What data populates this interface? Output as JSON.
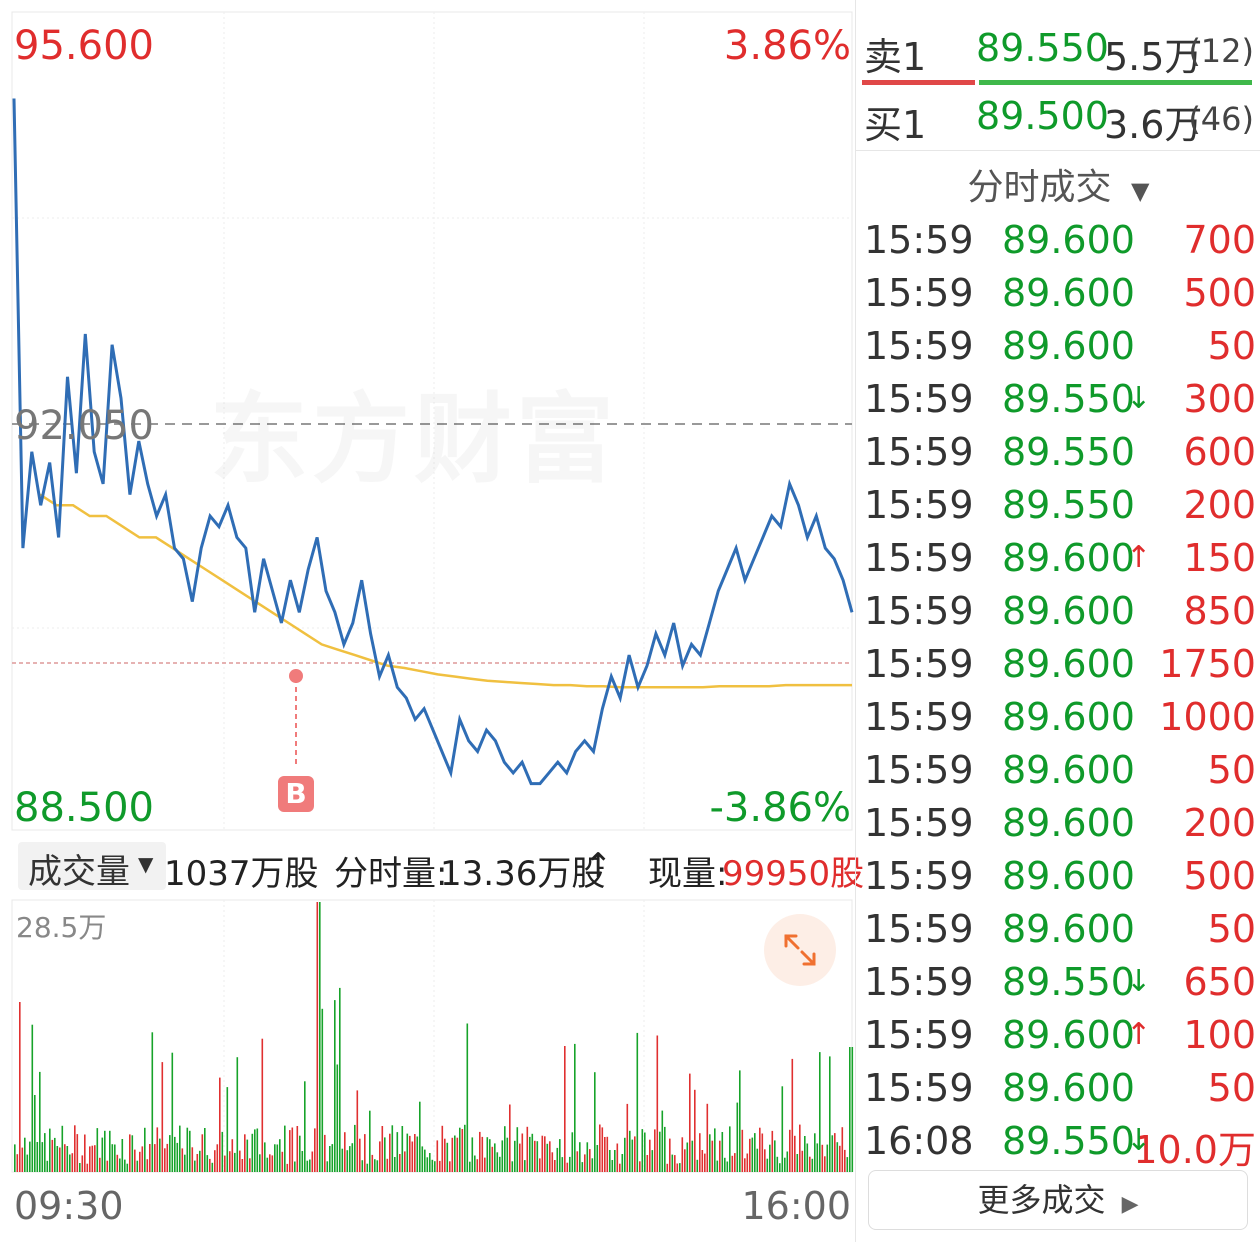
{
  "watermark": "东方财富",
  "price_axis": {
    "max": "95.600",
    "min": "88.500",
    "ref": "92.050",
    "pct_max": "3.86%",
    "pct_min": "-3.86%"
  },
  "marker_label": "B",
  "volume_bar": {
    "label": "成交量",
    "total": "1037万股",
    "min_vol_label": "分时量:",
    "min_vol": "13.36万股",
    "min_vol_arrow": "↑",
    "cur_label": "现量:",
    "cur_value": "99950股",
    "axis_max": "28.5万"
  },
  "time_axis": {
    "start": "09:30",
    "end": "16:00"
  },
  "orderbook": {
    "sell": {
      "label": "卖1",
      "price": "89.550",
      "vol": "5.5万",
      "count": "(12)",
      "buy_ratio": 0.29
    },
    "buy": {
      "label": "买1",
      "price": "89.500",
      "vol": "3.6万",
      "count": "(46)"
    }
  },
  "trades_header": "分时成交",
  "trades": [
    {
      "t": "15:59",
      "p": "89.600",
      "a": "",
      "v": "700"
    },
    {
      "t": "15:59",
      "p": "89.600",
      "a": "",
      "v": "500"
    },
    {
      "t": "15:59",
      "p": "89.600",
      "a": "",
      "v": "50"
    },
    {
      "t": "15:59",
      "p": "89.550",
      "a": "↓",
      "v": "300"
    },
    {
      "t": "15:59",
      "p": "89.550",
      "a": "",
      "v": "600"
    },
    {
      "t": "15:59",
      "p": "89.550",
      "a": "",
      "v": "200"
    },
    {
      "t": "15:59",
      "p": "89.600",
      "a": "↑",
      "v": "150"
    },
    {
      "t": "15:59",
      "p": "89.600",
      "a": "",
      "v": "850"
    },
    {
      "t": "15:59",
      "p": "89.600",
      "a": "",
      "v": "1750"
    },
    {
      "t": "15:59",
      "p": "89.600",
      "a": "",
      "v": "1000"
    },
    {
      "t": "15:59",
      "p": "89.600",
      "a": "",
      "v": "50"
    },
    {
      "t": "15:59",
      "p": "89.600",
      "a": "",
      "v": "200"
    },
    {
      "t": "15:59",
      "p": "89.600",
      "a": "",
      "v": "500"
    },
    {
      "t": "15:59",
      "p": "89.600",
      "a": "",
      "v": "50"
    },
    {
      "t": "15:59",
      "p": "89.550",
      "a": "↓",
      "v": "650"
    },
    {
      "t": "15:59",
      "p": "89.600",
      "a": "↑",
      "v": "100"
    },
    {
      "t": "15:59",
      "p": "89.600",
      "a": "",
      "v": "50"
    },
    {
      "t": "16:08",
      "p": "89.550",
      "a": "↓",
      "v": "10.0万"
    }
  ],
  "more_trades": "更多成交",
  "price_series": [
    95.1,
    90.9,
    91.8,
    91.3,
    91.7,
    91.0,
    92.5,
    91.6,
    92.9,
    91.8,
    91.5,
    92.8,
    92.3,
    91.4,
    91.9,
    91.5,
    91.2,
    91.4,
    90.9,
    90.8,
    90.4,
    90.9,
    91.2,
    91.1,
    91.3,
    91.0,
    90.9,
    90.3,
    90.8,
    90.5,
    90.2,
    90.6,
    90.3,
    90.7,
    91.0,
    90.5,
    90.3,
    90.0,
    90.2,
    90.6,
    90.1,
    89.7,
    89.9,
    89.6,
    89.5,
    89.3,
    89.4,
    89.2,
    89.0,
    88.8,
    89.3,
    89.1,
    89.0,
    89.2,
    89.1,
    88.9,
    88.8,
    88.9,
    88.7,
    88.7,
    88.8,
    88.9,
    88.8,
    89.0,
    89.1,
    89.0,
    89.4,
    89.7,
    89.5,
    89.9,
    89.6,
    89.8,
    90.1,
    89.9,
    90.2,
    89.8,
    90.0,
    89.9,
    90.2,
    90.5,
    90.7,
    90.9,
    90.6,
    90.8,
    91.0,
    91.2,
    91.1,
    91.5,
    91.3,
    91.0,
    91.2,
    90.9,
    90.8,
    90.6,
    90.3
  ],
  "avg_series": [
    91.4,
    91.3,
    91.3,
    91.2,
    91.2,
    91.1,
    91.0,
    91.0,
    90.9,
    90.8,
    90.7,
    90.6,
    90.5,
    90.4,
    90.3,
    90.2,
    90.1,
    90.0,
    89.95,
    89.9,
    89.85,
    89.8,
    89.78,
    89.75,
    89.72,
    89.7,
    89.68,
    89.66,
    89.65,
    89.64,
    89.63,
    89.62,
    89.62,
    89.61,
    89.61,
    89.6,
    89.6,
    89.6,
    89.6,
    89.6,
    89.6,
    89.61,
    89.61,
    89.61,
    89.61,
    89.62,
    89.62,
    89.62,
    89.62,
    89.62
  ]
}
